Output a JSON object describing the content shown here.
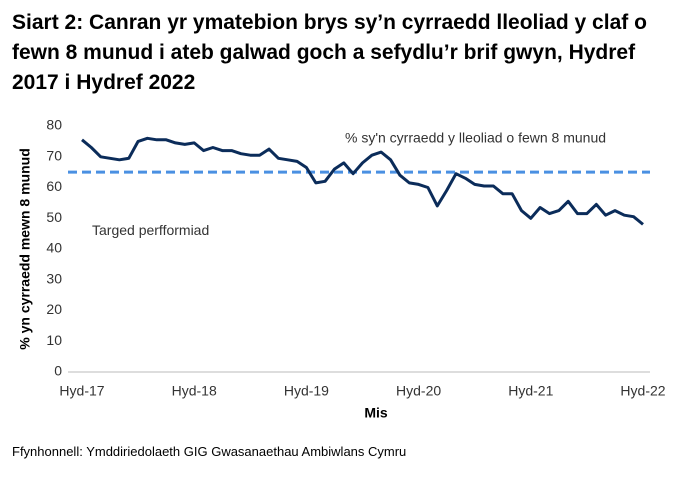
{
  "chart_data": {
    "type": "line",
    "title": "Siart 2: Canran yr ymatebion brys sy’n cyrraedd lleoliad y claf o fewn 8 munud i ateb galwad goch a sefydlu’r brif gwyn, Hydref 2017 i Hydref 2022",
    "y_label": "% yn cyrraedd mewn 8 munud",
    "x_label": "Mis",
    "source": "Ffynhonnell: Ymddiriedolaeth GIG Gwasanaethau Ambiwlans Cymru",
    "categories": [
      "Hyd-17",
      null,
      null,
      null,
      null,
      null,
      null,
      null,
      null,
      null,
      null,
      null,
      "Hyd-18",
      null,
      null,
      null,
      null,
      null,
      null,
      null,
      null,
      null,
      null,
      null,
      "Hyd-19",
      null,
      null,
      null,
      null,
      null,
      null,
      null,
      null,
      null,
      null,
      null,
      "Hyd-20",
      null,
      null,
      null,
      null,
      null,
      null,
      null,
      null,
      null,
      null,
      null,
      "Hyd-21",
      null,
      null,
      null,
      null,
      null,
      null,
      null,
      null,
      null,
      null,
      null,
      "Hyd-22"
    ],
    "series": [
      {
        "name": "% sy'n cyrraedd y lleoliad o fewn 8 munud",
        "color": "#0b2c5a",
        "values": [
          75.5,
          73,
          70,
          69.5,
          69,
          69.5,
          75,
          76,
          75.5,
          75.5,
          74.5,
          74,
          74.5,
          72,
          73,
          72,
          72,
          71,
          70.5,
          70.5,
          72.5,
          69.5,
          69,
          68.5,
          66.5,
          61.5,
          62,
          66,
          68,
          64.5,
          68,
          70.5,
          71.5,
          69,
          64,
          61.5,
          61,
          60,
          54,
          59,
          64.5,
          63,
          61,
          60.5,
          60.5,
          58,
          58,
          52.5,
          50,
          53.5,
          51.5,
          52.5,
          55.5,
          51.5,
          51.5,
          54.5,
          51,
          52.5,
          51,
          50.5,
          48
        ]
      }
    ],
    "target": {
      "label": "Targed perfformiad",
      "value": 65,
      "color": "#4a90e2"
    },
    "ylim": [
      0,
      80
    ],
    "yticks": [
      0,
      10,
      20,
      30,
      40,
      50,
      60,
      70,
      80
    ],
    "grid": false
  }
}
